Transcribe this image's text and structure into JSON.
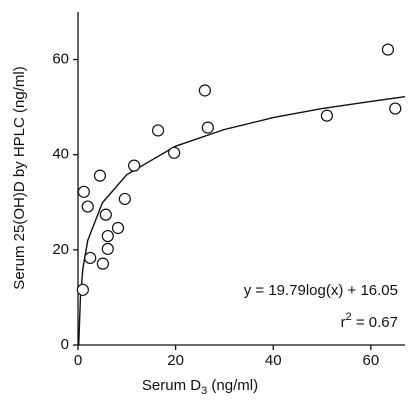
{
  "chart_data": {
    "type": "scatter",
    "x_label": {
      "text": "Serum D",
      "subscript": "3",
      "suffix": " (ng/ml)"
    },
    "y_label": "Serum 25(OH)D by HPLC (ng/ml)",
    "xlim": [
      0,
      67
    ],
    "ylim": [
      0,
      70
    ],
    "xticks": [
      0,
      20,
      40,
      60
    ],
    "yticks": [
      0,
      20,
      40,
      60
    ],
    "grid": false,
    "series": [
      {
        "color": "#111111",
        "x": [
          1.0,
          1.2,
          2.0,
          2.5,
          4.5,
          5.1,
          5.7,
          6.1,
          6.1,
          8.2,
          9.6,
          11.5,
          16.4,
          19.7,
          26.0,
          26.6,
          51.0,
          63.5,
          65.0
        ],
        "values": [
          11.6,
          32.2,
          29.1,
          18.3,
          35.6,
          17.1,
          27.4,
          22.9,
          20.2,
          24.6,
          30.7,
          37.7,
          45.1,
          40.4,
          53.5,
          45.7,
          48.2,
          62.1,
          49.7
        ]
      }
    ],
    "fit": {
      "type": "line",
      "color": "#111111",
      "x": [
        0.15,
        0.5,
        1,
        2,
        5,
        10,
        20,
        30,
        40,
        50,
        60,
        67
      ],
      "values": [
        0,
        10.1,
        16.05,
        22.0,
        29.9,
        35.8,
        41.8,
        45.3,
        47.8,
        49.7,
        51.2,
        52.2
      ]
    },
    "annotations": [
      {
        "text": "y = 19.79log(x) + 16.05"
      },
      {
        "text": "r",
        "superscript": "2",
        "suffix": " = 0.67"
      }
    ]
  }
}
